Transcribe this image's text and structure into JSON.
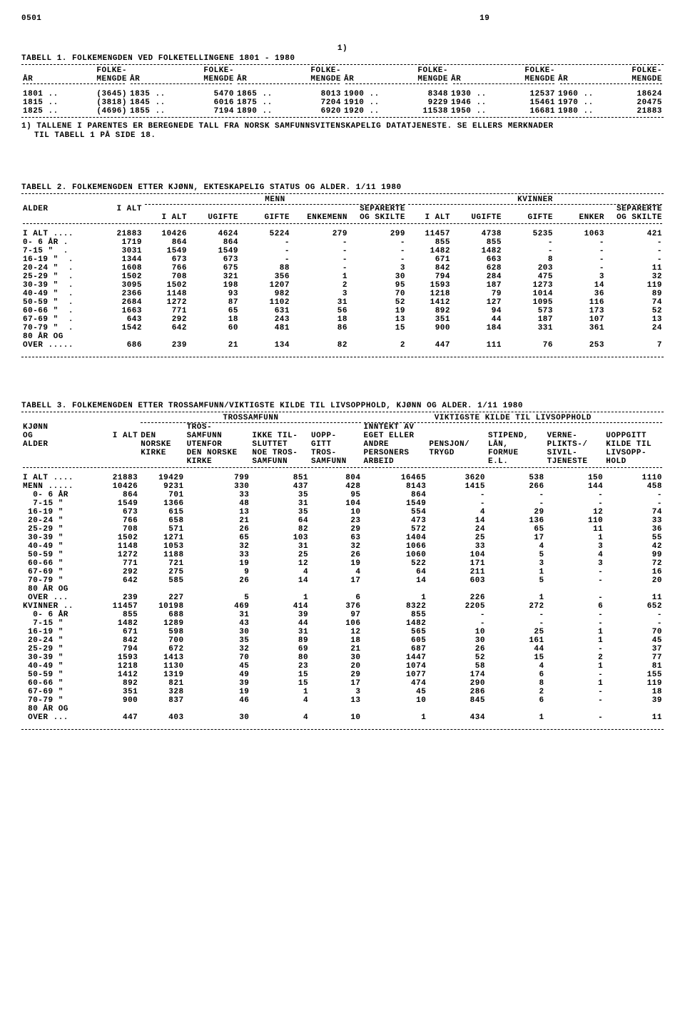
{
  "page_code": "0501",
  "page_num": "19",
  "superscript": "1)",
  "table1": {
    "title": "TABELL 1.  FOLKEMENGDEN VED FOLKETELLINGENE 1801 - 1980",
    "col_year": "ÅR",
    "col_pop1": "FOLKE-",
    "col_pop2": "MENGDE",
    "rows": [
      [
        "1801 ..",
        "(3645)",
        "1835 ..",
        "5470",
        "1865 ..",
        "8013",
        "1900 ..",
        "8348",
        "1930 ..",
        "12537",
        "1960 ..",
        "18624"
      ],
      [
        "1815 ..",
        "(3818)",
        "1845 ..",
        "6016",
        "1875 ..",
        "7204",
        "1910 ..",
        "9229",
        "1946 ..",
        "15461",
        "1970 ..",
        "20475"
      ],
      [
        "1825 ..",
        "(4696)",
        "1855 ..",
        "7194",
        "1890 ..",
        "6920",
        "1920 ..",
        "11538",
        "1950 ..",
        "16681",
        "1980 ..",
        "21883"
      ]
    ],
    "footnote1": "1) TALLENE I PARENTES ER BEREGNEDE TALL FRA NORSK SAMFUNNSVITENSKAPELIG DATATJENESTE.  SE ELLERS MERKNADER",
    "footnote2": "TIL TABELL 1 PÅ SIDE 18."
  },
  "table2": {
    "title": "TABELL 2.  FOLKEMENGDEN ETTER KJØNN, EKTESKAPELIG STATUS OG ALDER.  1/11 1980",
    "h_menn": "MENN",
    "h_kvinner": "KVINNER",
    "h_alder": "ALDER",
    "h_ialt": "I ALT",
    "h_ugifte": "UGIFTE",
    "h_gifte": "GIFTE",
    "h_enkemenn": "ENKEMENN",
    "h_sep1": "SEPARERTE",
    "h_sep2": "OG SKILTE",
    "h_enker": "ENKER",
    "rows": [
      [
        "I ALT ....",
        "21883",
        "10426",
        "4624",
        "5224",
        "279",
        "299",
        "11457",
        "4738",
        "5235",
        "1063",
        "421"
      ],
      [
        "",
        ""
      ],
      [
        "0- 6 ÅR .",
        "1719",
        "864",
        "864",
        "-",
        "-",
        "-",
        "855",
        "855",
        "-",
        "-",
        "-"
      ],
      [
        "7-15 \"  .",
        "3031",
        "1549",
        "1549",
        "-",
        "-",
        "-",
        "1482",
        "1482",
        "-",
        "-",
        "-"
      ],
      [
        "16-19 \"  .",
        "1344",
        "673",
        "673",
        "-",
        "-",
        "-",
        "671",
        "663",
        "8",
        "-",
        "-"
      ],
      [
        "20-24 \"  .",
        "1608",
        "766",
        "675",
        "88",
        "-",
        "3",
        "842",
        "628",
        "203",
        "-",
        "11"
      ],
      [
        "25-29 \"  .",
        "1502",
        "708",
        "321",
        "356",
        "1",
        "30",
        "794",
        "284",
        "475",
        "3",
        "32"
      ],
      [
        "30-39 \"  .",
        "3095",
        "1502",
        "198",
        "1207",
        "2",
        "95",
        "1593",
        "187",
        "1273",
        "14",
        "119"
      ],
      [
        "40-49 \"  .",
        "2366",
        "1148",
        "93",
        "982",
        "3",
        "70",
        "1218",
        "79",
        "1014",
        "36",
        "89"
      ],
      [
        "50-59 \"  .",
        "2684",
        "1272",
        "87",
        "1102",
        "31",
        "52",
        "1412",
        "127",
        "1095",
        "116",
        "74"
      ],
      [
        "60-66 \"  .",
        "1663",
        "771",
        "65",
        "631",
        "56",
        "19",
        "892",
        "94",
        "573",
        "173",
        "52"
      ],
      [
        "67-69 \"  .",
        "643",
        "292",
        "18",
        "243",
        "18",
        "13",
        "351",
        "44",
        "187",
        "107",
        "13"
      ],
      [
        "70-79 \"  .",
        "1542",
        "642",
        "60",
        "481",
        "86",
        "15",
        "900",
        "184",
        "331",
        "361",
        "24"
      ],
      [
        "80 ÅR OG",
        "",
        "",
        "",
        "",
        "",
        "",
        "",
        "",
        "",
        "",
        ""
      ],
      [
        "OVER .....",
        "686",
        "239",
        "21",
        "134",
        "82",
        "2",
        "447",
        "111",
        "76",
        "253",
        "7"
      ]
    ]
  },
  "table3": {
    "title": "TABELL 3.  FOLKEMENGDEN ETTER TROSSAMFUNN/VIKTIGSTE KILDE TIL LIVSOPPHOLD, KJØNN OG ALDER.  1/11 1980",
    "h_tros": "TROSSAMFUNN",
    "h_vikt": "VIKTIGSTE KILDE TIL LIVSOPPHOLD",
    "h_kjonn1": "KJØNN",
    "h_kjonn2": "OG",
    "h_kjonn3": "ALDER",
    "h_ialt": "I ALT",
    "h_den1": "DEN",
    "h_den2": "NORSKE",
    "h_den3": "KIRKE",
    "h_tros1": "TROS-",
    "h_tros2": "SAMFUNN",
    "h_tros3": "UTENFOR",
    "h_tros4": "DEN NORSKE",
    "h_tros5": "KIRKE",
    "h_ikke1": "IKKE TIL-",
    "h_ikke2": "SLUTTET",
    "h_ikke3": "NOE TROS-",
    "h_ikke4": "SAMFUNN",
    "h_uopp1": "UOPP-",
    "h_uopp2": "GITT",
    "h_uopp3": "TROS-",
    "h_uopp4": "SAMFUNN",
    "h_innt1": "INNTEKT AV",
    "h_innt2": "EGET ELLER",
    "h_innt3": "ANDRE",
    "h_innt4": "PERSONERS",
    "h_innt5": "ARBEID",
    "h_pens1": "PENSJON/",
    "h_pens2": "TRYGD",
    "h_stip1": "STIPEND,",
    "h_stip2": "LÅN,",
    "h_stip3": "FORMUE",
    "h_stip4": "E.L.",
    "h_verne1": "VERNE-",
    "h_verne2": "PLIKTS-/",
    "h_verne3": "SIVIL-",
    "h_verne4": "TJENESTE",
    "h_uoppg1": "UOPPGITT",
    "h_uoppg2": "KILDE TIL",
    "h_uoppg3": "LIVSOPP-",
    "h_uoppg4": "HOLD",
    "rows": [
      [
        "I ALT ....",
        "21883",
        "19429",
        "799",
        "851",
        "804",
        "16465",
        "3620",
        "538",
        "150",
        "1110"
      ],
      [
        "",
        "",
        "",
        "",
        "",
        "",
        "",
        "",
        "",
        "",
        ""
      ],
      [
        "MENN .....",
        "10426",
        "9231",
        "330",
        "437",
        "428",
        "8143",
        "1415",
        "266",
        "144",
        "458"
      ],
      [
        "  0- 6 ÅR",
        "864",
        "701",
        "33",
        "35",
        "95",
        "864",
        "-",
        "-",
        "-",
        "-"
      ],
      [
        "  7-15 \"",
        "1549",
        "1366",
        "48",
        "31",
        "104",
        "1549",
        "-",
        "-",
        "-",
        "-"
      ],
      [
        " 16-19 \"",
        "673",
        "615",
        "13",
        "35",
        "10",
        "554",
        "4",
        "29",
        "12",
        "74"
      ],
      [
        " 20-24 \"",
        "766",
        "658",
        "21",
        "64",
        "23",
        "473",
        "14",
        "136",
        "110",
        "33"
      ],
      [
        " 25-29 \"",
        "708",
        "571",
        "26",
        "82",
        "29",
        "572",
        "24",
        "65",
        "11",
        "36"
      ],
      [
        " 30-39 \"",
        "1502",
        "1271",
        "65",
        "103",
        "63",
        "1404",
        "25",
        "17",
        "1",
        "55"
      ],
      [
        " 40-49 \"",
        "1148",
        "1053",
        "32",
        "31",
        "32",
        "1066",
        "33",
        "4",
        "3",
        "42"
      ],
      [
        " 50-59 \"",
        "1272",
        "1188",
        "33",
        "25",
        "26",
        "1060",
        "104",
        "5",
        "4",
        "99"
      ],
      [
        " 60-66 \"",
        "771",
        "721",
        "19",
        "12",
        "19",
        "522",
        "171",
        "3",
        "3",
        "72"
      ],
      [
        " 67-69 \"",
        "292",
        "275",
        "9",
        "4",
        "4",
        "64",
        "211",
        "1",
        "-",
        "16"
      ],
      [
        " 70-79 \"",
        "642",
        "585",
        "26",
        "14",
        "17",
        "14",
        "603",
        "5",
        "-",
        "20"
      ],
      [
        " 80 ÅR OG",
        "",
        "",
        "",
        "",
        "",
        "",
        "",
        "",
        "",
        ""
      ],
      [
        " OVER ...",
        "239",
        "227",
        "5",
        "1",
        "6",
        "1",
        "226",
        "1",
        "-",
        "11"
      ],
      [
        "",
        "",
        "",
        "",
        "",
        "",
        "",
        "",
        "",
        "",
        ""
      ],
      [
        "KVINNER ..",
        "11457",
        "10198",
        "469",
        "414",
        "376",
        "8322",
        "2205",
        "272",
        "6",
        "652"
      ],
      [
        "  0- 6 ÅR",
        "855",
        "688",
        "31",
        "39",
        "97",
        "855",
        "-",
        "-",
        "-",
        "-"
      ],
      [
        "  7-15 \"",
        "1482",
        "1289",
        "43",
        "44",
        "106",
        "1482",
        "-",
        "-",
        "-",
        "-"
      ],
      [
        " 16-19 \"",
        "671",
        "598",
        "30",
        "31",
        "12",
        "565",
        "10",
        "25",
        "1",
        "70"
      ],
      [
        " 20-24 \"",
        "842",
        "700",
        "35",
        "89",
        "18",
        "605",
        "30",
        "161",
        "1",
        "45"
      ],
      [
        " 25-29 \"",
        "794",
        "672",
        "32",
        "69",
        "21",
        "687",
        "26",
        "44",
        "-",
        "37"
      ],
      [
        " 30-39 \"",
        "1593",
        "1413",
        "70",
        "80",
        "30",
        "1447",
        "52",
        "15",
        "2",
        "77"
      ],
      [
        " 40-49 \"",
        "1218",
        "1130",
        "45",
        "23",
        "20",
        "1074",
        "58",
        "4",
        "1",
        "81"
      ],
      [
        " 50-59 \"",
        "1412",
        "1319",
        "49",
        "15",
        "29",
        "1077",
        "174",
        "6",
        "-",
        "155"
      ],
      [
        " 60-66 \"",
        "892",
        "821",
        "39",
        "15",
        "17",
        "474",
        "290",
        "8",
        "1",
        "119"
      ],
      [
        " 67-69 \"",
        "351",
        "328",
        "19",
        "1",
        "3",
        "45",
        "286",
        "2",
        "-",
        "18"
      ],
      [
        " 70-79 \"",
        "900",
        "837",
        "46",
        "4",
        "13",
        "10",
        "845",
        "6",
        "-",
        "39"
      ],
      [
        " 80 ÅR OG",
        "",
        "",
        "",
        "",
        "",
        "",
        "",
        "",
        "",
        ""
      ],
      [
        " OVER ...",
        "447",
        "403",
        "30",
        "4",
        "10",
        "1",
        "434",
        "1",
        "-",
        "11"
      ]
    ]
  }
}
